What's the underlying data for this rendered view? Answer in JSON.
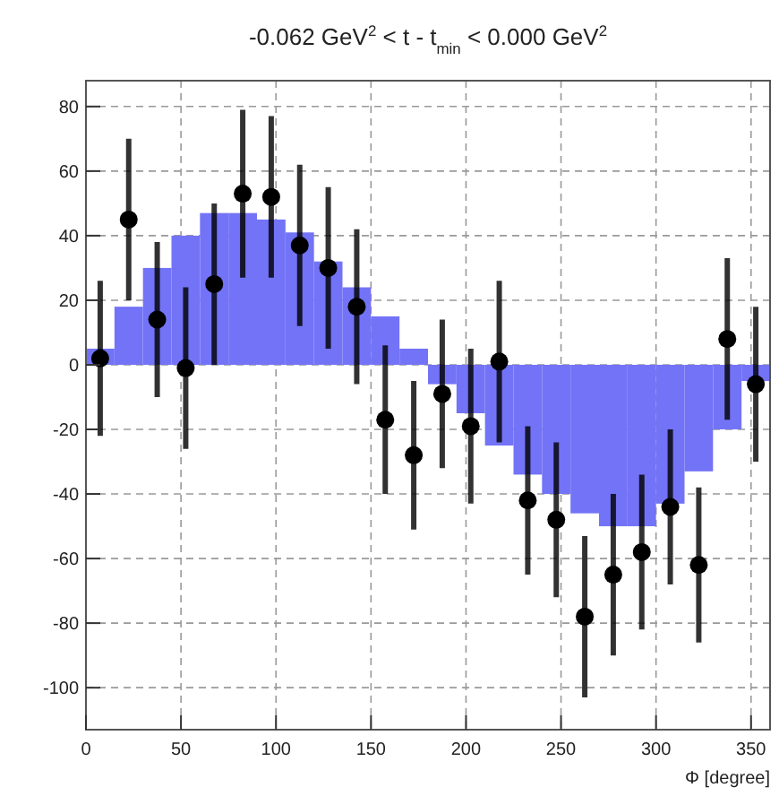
{
  "chart_data": {
    "type": "histogram",
    "title": "-0.062 GeV$^{2}$ < t - t$_{min}$ < 0.000 GeV$^{2}$",
    "xlabel": "Φ [degree]",
    "bins": [
      0,
      15,
      30,
      45,
      60,
      75,
      90,
      105,
      120,
      135,
      150,
      165,
      180,
      195,
      210,
      225,
      240,
      255,
      270,
      285,
      300,
      315,
      330,
      345,
      360
    ],
    "series": [
      {
        "color": "#7373f7",
        "values": [
          5,
          18,
          30,
          40,
          47,
          47,
          45,
          41,
          32,
          24,
          15,
          5,
          -6,
          -15,
          -25,
          -34,
          -40,
          -46,
          -50,
          -50,
          -43,
          -33,
          -20,
          -5
        ]
      },
      {
        "type": "scatter",
        "color": "#000000",
        "x": [
          7.5,
          22.5,
          37.5,
          52.5,
          67.5,
          82.5,
          97.5,
          112.5,
          127.5,
          142.5,
          157.5,
          172.5,
          187.5,
          202.5,
          217.5,
          232.5,
          247.5,
          262.5,
          277.5,
          292.5,
          307.5,
          322.5,
          337.5,
          352.5
        ],
        "values": [
          2,
          45,
          14,
          -1,
          25,
          53,
          52,
          37,
          30,
          18,
          -17,
          -28,
          -9,
          -19,
          1,
          -42,
          -48,
          -78,
          -65,
          -58,
          -44,
          -62,
          8,
          -6
        ],
        "errors": [
          24,
          25,
          24,
          25,
          25,
          26,
          25,
          25,
          25,
          24,
          23,
          23,
          23,
          24,
          25,
          23,
          24,
          25,
          25,
          24,
          24,
          24,
          25,
          24
        ]
      }
    ],
    "xlim": [
      0,
      360
    ],
    "ylim": [
      -113,
      88
    ],
    "xticks": [
      0,
      50,
      100,
      150,
      200,
      250,
      300,
      350
    ],
    "yticks": [
      -100,
      -80,
      -60,
      -40,
      -20,
      0,
      20,
      40,
      60,
      80
    ],
    "grid": true,
    "marker": "circle"
  }
}
